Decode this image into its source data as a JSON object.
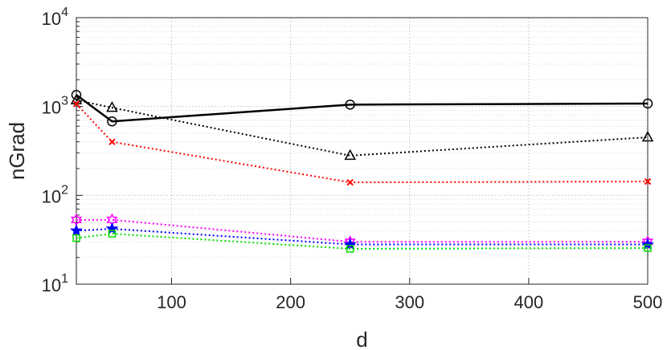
{
  "chart_data": {
    "type": "line",
    "xlabel": "d",
    "ylabel": "nGrad",
    "xlim": [
      20,
      500
    ],
    "ylim": [
      10,
      10000
    ],
    "yscale": "log",
    "grid": true,
    "x_ticks": [
      {
        "value": 100,
        "label": "100"
      },
      {
        "value": 200,
        "label": "200"
      },
      {
        "value": 300,
        "label": "300"
      },
      {
        "value": 400,
        "label": "400"
      },
      {
        "value": 500,
        "label": "500"
      }
    ],
    "y_ticks": [
      {
        "value": 10,
        "base": "10",
        "exp": "1"
      },
      {
        "value": 100,
        "base": "10",
        "exp": "2"
      },
      {
        "value": 1000,
        "base": "10",
        "exp": "3"
      },
      {
        "value": 10000,
        "base": "10",
        "exp": "4"
      }
    ],
    "series": [
      {
        "color": "#000000",
        "dash": "solid",
        "marker": "circle",
        "x": [
          20,
          50,
          250,
          500
        ],
        "y": [
          1350,
          680,
          1050,
          1080
        ]
      },
      {
        "color": "#000000",
        "dash": "dotted",
        "marker": "triangle",
        "x": [
          20,
          50,
          250,
          500
        ],
        "y": [
          1180,
          970,
          280,
          450
        ]
      },
      {
        "color": "#ff0000",
        "dash": "dotted",
        "marker": "x",
        "x": [
          20,
          50,
          250,
          500
        ],
        "y": [
          1070,
          400,
          140,
          143
        ]
      },
      {
        "color": "#ff00ff",
        "dash": "dotted",
        "marker": "hexagram",
        "x": [
          20,
          50,
          250,
          500
        ],
        "y": [
          53,
          53,
          30,
          30
        ]
      },
      {
        "color": "#0000ff",
        "dash": "dotted",
        "marker": "pentagram",
        "x": [
          20,
          50,
          250,
          500
        ],
        "y": [
          40,
          42,
          28,
          28
        ]
      },
      {
        "color": "#00dd00",
        "dash": "dotted",
        "marker": "square",
        "x": [
          20,
          50,
          250,
          500
        ],
        "y": [
          33,
          37,
          25,
          25.5
        ]
      }
    ]
  }
}
